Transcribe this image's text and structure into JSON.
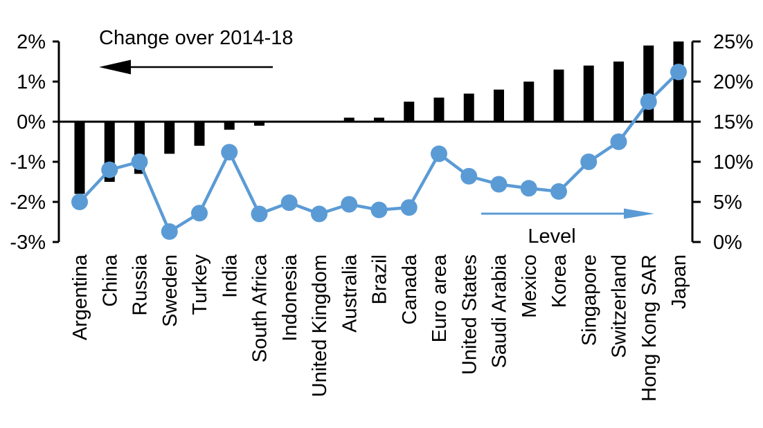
{
  "chart_data": {
    "type": "bar+line-dual-axis",
    "title": "Change over 2014-18",
    "level_label": "Level",
    "categories": [
      "Argentina",
      "China",
      "Russia",
      "Sweden",
      "Turkey",
      "India",
      "South Africa",
      "Indonesia",
      "United Kingdom",
      "Australia",
      "Brazil",
      "Canada",
      "Euro area",
      "United States",
      "Saudi Arabia",
      "Mexico",
      "Korea",
      "Singapore",
      "Switzerland",
      "Hong Kong SAR",
      "Japan"
    ],
    "series": [
      {
        "name": "Change over 2014-18",
        "type": "bar",
        "axis": "left",
        "color": "#000000",
        "values": [
          -1.8,
          -1.5,
          -1.3,
          -0.8,
          -0.6,
          -0.2,
          -0.1,
          0.0,
          0.0,
          0.1,
          0.1,
          0.5,
          0.6,
          0.7,
          0.8,
          1.0,
          1.3,
          1.4,
          1.5,
          1.9,
          2.0
        ]
      },
      {
        "name": "Level",
        "type": "line",
        "axis": "right",
        "color": "#5B9BD5",
        "values": [
          5.0,
          9.0,
          10.0,
          1.3,
          3.6,
          11.2,
          3.5,
          4.9,
          3.5,
          4.7,
          4.0,
          4.3,
          11.0,
          8.2,
          7.2,
          6.7,
          6.3,
          10.0,
          12.5,
          17.5,
          21.2
        ]
      }
    ],
    "left_axis": {
      "tick_labels": [
        "2%",
        "1%",
        "0%",
        "-1%",
        "-2%",
        "-3%"
      ],
      "tick_values": [
        2,
        1,
        0,
        -1,
        -2,
        -3
      ],
      "min": -3,
      "max": 2
    },
    "right_axis": {
      "tick_labels": [
        "25%",
        "20%",
        "15%",
        "10%",
        "5%",
        "0%"
      ],
      "tick_values": [
        25,
        20,
        15,
        10,
        5,
        0
      ],
      "min": 0,
      "max": 25
    },
    "legend_position": "annotations-with-arrows",
    "grid": false,
    "colors": {
      "bar": "#000000",
      "line": "#5B9BD5",
      "axis": "#000000",
      "background": "#FFFFFF"
    }
  }
}
